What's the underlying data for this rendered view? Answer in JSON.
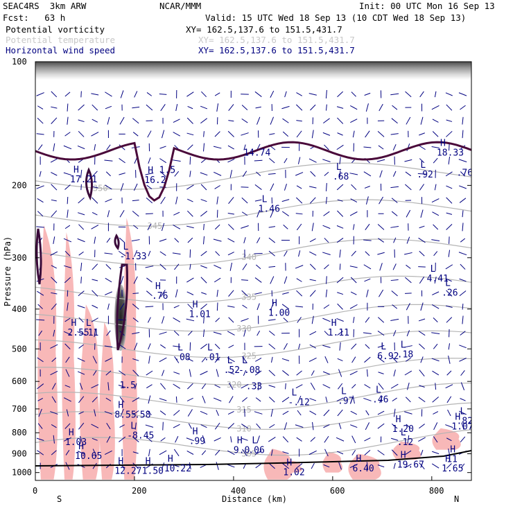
{
  "header": {
    "model": "SEAC4RS  3km ARW",
    "org": "NCAR/MMM",
    "init": "Init: 00 UTC Mon 16 Sep 13",
    "fcst": "Fcst:   63 h",
    "valid": "Valid: 15 UTC Wed 18 Sep 13 (10 CDT Wed 18 Sep 13)",
    "fields": [
      {
        "name": "Potential vorticity",
        "xy": "XY= 162.5,137.6 to 151.5,431.7",
        "color": "#000000"
      },
      {
        "name": "Potential temperature",
        "xy": "XY= 162.5,137.6 to 151.5,431.7",
        "color": "#c8c8c8"
      },
      {
        "name": "Horizontal wind speed",
        "xy": "XY= 162.5,137.6 to 151.5,431.7",
        "color": "#000080"
      }
    ]
  },
  "chart_data": {
    "type": "cross-section",
    "xlabel": "Distance (km)",
    "ylabel": "Pressure (hPa)",
    "xlim": [
      0,
      880
    ],
    "ylim": [
      100,
      1045
    ],
    "y_log_scale": true,
    "x_ticks": [
      0,
      200,
      400,
      600,
      800
    ],
    "y_ticks": [
      100,
      200,
      300,
      400,
      500,
      600,
      700,
      800,
      900,
      1000
    ],
    "left_end_label": "S",
    "right_end_label": "N",
    "colors": {
      "pv_fill": "#f8b8b8",
      "theta": "#b4b4b4",
      "wind": "#000080",
      "tropopause": "#4a0a3a"
    },
    "theta_isentropes": [
      {
        "value": 305,
        "label": "305",
        "label_x": 430
      },
      {
        "value": 310,
        "label": "310",
        "label_x": 420
      },
      {
        "value": 315,
        "label": "315",
        "label_x": 420
      },
      {
        "value": 320,
        "label": "320",
        "label_x": 400
      },
      {
        "value": 325,
        "label": "325",
        "label_x": 430
      },
      {
        "value": 330,
        "label": "330",
        "label_x": 420
      },
      {
        "value": 335,
        "label": "335",
        "label_x": 430
      },
      {
        "value": 340,
        "label": "340",
        "label_x": 430
      },
      {
        "value": 345,
        "label": "345",
        "label_x": 240
      },
      {
        "value": 350,
        "label": "350",
        "label_x": 130
      }
    ],
    "extrema_labels": [
      {
        "type": "H",
        "value": "17.21",
        "x": 70,
        "p": 195
      },
      {
        "type": "H",
        "value": "16.2",
        "x": 220,
        "p": 196
      },
      {
        "type": "",
        "value": "1.5",
        "x": 250,
        "p": 185
      },
      {
        "type": "",
        "value": "14.74",
        "x": 420,
        "p": 168
      },
      {
        "type": "L",
        "value": ".68",
        "x": 600,
        "p": 192
      },
      {
        "type": "H",
        "value": "18.33",
        "x": 810,
        "p": 168
      },
      {
        "type": "L",
        "value": ".92",
        "x": 770,
        "p": 190
      },
      {
        "type": "",
        "value": ".76",
        "x": 850,
        "p": 188
      },
      {
        "type": "L",
        "value": "1.46",
        "x": 450,
        "p": 230
      },
      {
        "type": "L",
        "value": "-1.33",
        "x": 170,
        "p": 300
      },
      {
        "type": "L",
        "value": "4.41",
        "x": 790,
        "p": 340
      },
      {
        "type": "L",
        "value": ".26",
        "x": 820,
        "p": 368
      },
      {
        "type": "H",
        "value": ".76",
        "x": 235,
        "p": 375
      },
      {
        "type": "H",
        "value": "1.01",
        "x": 310,
        "p": 415
      },
      {
        "type": "H",
        "value": "1.00",
        "x": 470,
        "p": 412
      },
      {
        "type": "H",
        "value": "2.55",
        "x": 65,
        "p": 460
      },
      {
        "type": "L",
        "value": ".11",
        "x": 95,
        "p": 460
      },
      {
        "type": "H",
        "value": "1.11",
        "x": 590,
        "p": 460
      },
      {
        "type": "L",
        "value": "6.92",
        "x": 690,
        "p": 525
      },
      {
        "type": "L",
        "value": ".18",
        "x": 730,
        "p": 520
      },
      {
        "type": "L",
        "value": ".08",
        "x": 280,
        "p": 528
      },
      {
        "type": "L",
        "value": ".01",
        "x": 340,
        "p": 528
      },
      {
        "type": "L",
        "value": ".52",
        "x": 380,
        "p": 568
      },
      {
        "type": "L",
        "value": "-.08",
        "x": 410,
        "p": 568
      },
      {
        "type": "",
        "value": ".33",
        "x": 425,
        "p": 622
      },
      {
        "type": "",
        "value": "1.5",
        "x": 170,
        "p": 618
      },
      {
        "type": "L",
        "value": "-.12",
        "x": 510,
        "p": 680
      },
      {
        "type": "L",
        "value": ".97",
        "x": 610,
        "p": 675
      },
      {
        "type": "L",
        "value": ".46",
        "x": 680,
        "p": 670
      },
      {
        "type": "H",
        "value": "8.55",
        "x": 160,
        "p": 730
      },
      {
        "type": "",
        "value": ".58",
        "x": 200,
        "p": 730
      },
      {
        "type": "L",
        "value": "-8.45",
        "x": 185,
        "p": 820
      },
      {
        "type": "H",
        "value": "1.20",
        "x": 720,
        "p": 790
      },
      {
        "type": "H",
        "value": "1.07",
        "x": 840,
        "p": 780
      },
      {
        "type": "L",
        "value": ".82",
        "x": 850,
        "p": 755
      },
      {
        "type": "H",
        "value": "1.03",
        "x": 60,
        "p": 850
      },
      {
        "type": "H",
        "value": ".99",
        "x": 310,
        "p": 845
      },
      {
        "type": "L",
        "value": ".12",
        "x": 730,
        "p": 850
      },
      {
        "type": "H",
        "value": "9.0",
        "x": 400,
        "p": 890
      },
      {
        "type": "L",
        "value": ".06",
        "x": 430,
        "p": 890
      },
      {
        "type": "H",
        "value": "10.65",
        "x": 80,
        "p": 920
      },
      {
        "type": "H",
        "value": "11",
        "x": 830,
        "p": 935
      },
      {
        "type": "H",
        "value": "12.27",
        "x": 160,
        "p": 1000
      },
      {
        "type": "H",
        "value": "1.50",
        "x": 215,
        "p": 1000
      },
      {
        "type": "H",
        "value": "10.22",
        "x": 260,
        "p": 985
      },
      {
        "type": "H",
        "value": "6.40",
        "x": 640,
        "p": 985
      },
      {
        "type": "H",
        "value": "19.67",
        "x": 730,
        "p": 965
      },
      {
        "type": "H",
        "value": "1.65",
        "x": 820,
        "p": 985
      },
      {
        "type": "H",
        "value": "1.02",
        "x": 500,
        "p": 1008
      }
    ],
    "pv_positive_columns": [
      {
        "x0": 5,
        "x1": 45,
        "p_top": 250,
        "p_bot": 1040
      },
      {
        "x0": 55,
        "x1": 80,
        "p_top": 260,
        "p_bot": 1040
      },
      {
        "x0": 90,
        "x1": 130,
        "p_top": 390,
        "p_bot": 1040
      },
      {
        "x0": 130,
        "x1": 160,
        "p_top": 430,
        "p_bot": 1040
      },
      {
        "x0": 175,
        "x1": 205,
        "p_top": 240,
        "p_bot": 1040
      },
      {
        "x0": 460,
        "x1": 520,
        "p_top": 875,
        "p_bot": 1040
      },
      {
        "x0": 580,
        "x1": 620,
        "p_top": 890,
        "p_bot": 1000
      },
      {
        "x0": 630,
        "x1": 700,
        "p_top": 900,
        "p_bot": 1040
      },
      {
        "x0": 720,
        "x1": 780,
        "p_top": 840,
        "p_bot": 930
      },
      {
        "x0": 800,
        "x1": 860,
        "p_top": 780,
        "p_bot": 880
      },
      {
        "x0": 480,
        "x1": 540,
        "p_top": 930,
        "p_bot": 1000
      }
    ]
  }
}
